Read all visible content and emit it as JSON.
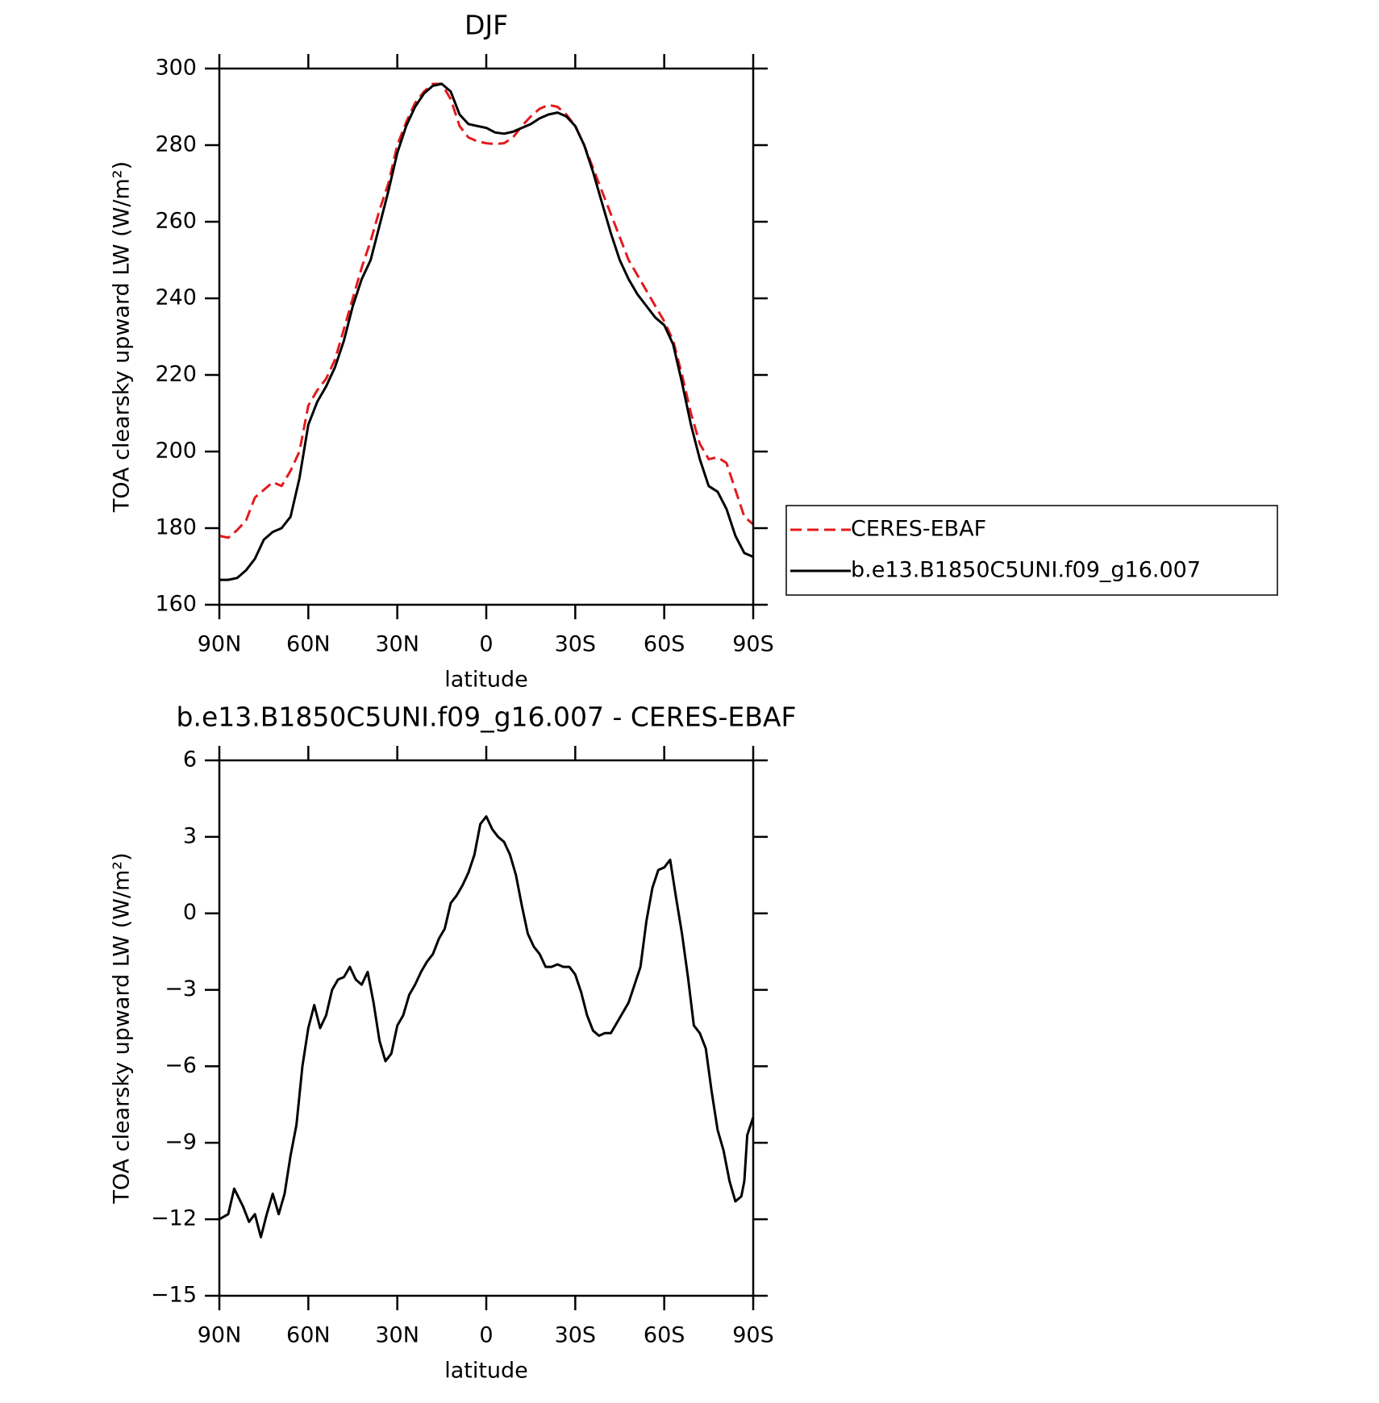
{
  "chart_data": [
    {
      "type": "line",
      "title": "DJF",
      "xlabel": "latitude",
      "ylabel": "TOA clearsky upward LW (W/m²)",
      "xlim": [
        90,
        -90
      ],
      "xticks": [
        {
          "value": 90,
          "label": "90N"
        },
        {
          "value": 60,
          "label": "60N"
        },
        {
          "value": 30,
          "label": "30N"
        },
        0,
        {
          "value": -30,
          "label": "30S"
        },
        {
          "value": -60,
          "label": "60S"
        },
        {
          "value": -90,
          "label": "90S"
        }
      ],
      "ylim": [
        160,
        300
      ],
      "yticks": [
        160,
        180,
        200,
        220,
        240,
        260,
        280,
        300
      ],
      "x": [
        90,
        87,
        84,
        81,
        78,
        75,
        72,
        69,
        66,
        63,
        60,
        57,
        54,
        51,
        48,
        45,
        42,
        39,
        36,
        33,
        30,
        27,
        24,
        21,
        18,
        15,
        12,
        9,
        6,
        3,
        0,
        -3,
        -6,
        -9,
        -12,
        -15,
        -18,
        -21,
        -24,
        -27,
        -30,
        -33,
        -36,
        -39,
        -42,
        -45,
        -48,
        -51,
        -54,
        -57,
        -60,
        -63,
        -66,
        -69,
        -72,
        -75,
        -78,
        -81,
        -84,
        -87,
        -90
      ],
      "series": [
        {
          "name": "CERES-EBAF",
          "color": "#e41a1c",
          "dash": true,
          "values": [
            178,
            177.5,
            179.5,
            182,
            188,
            190,
            192,
            191,
            195,
            200,
            212,
            216,
            219,
            224,
            232,
            240,
            248,
            255,
            263,
            270,
            280,
            286,
            291,
            294,
            296,
            296,
            292,
            285,
            282,
            281,
            280.5,
            280.3,
            280.5,
            282,
            285,
            287.5,
            289.5,
            290.5,
            290,
            288,
            285,
            280,
            274,
            268,
            262,
            256,
            250,
            246,
            242,
            238,
            234,
            229,
            220,
            210,
            202,
            198,
            198.5,
            197,
            190,
            183,
            181
          ]
        },
        {
          "name": "b.e13.B1850C5UNI.f09_g16.007",
          "color": "#000000",
          "dash": false,
          "values": [
            166.5,
            166.5,
            167,
            169,
            172,
            177,
            179,
            180,
            183,
            193,
            207,
            213,
            217,
            222,
            229,
            238,
            245,
            250,
            259,
            268,
            278,
            285,
            290,
            293.5,
            295.5,
            296,
            294,
            288,
            285.5,
            285,
            284.5,
            283.3,
            283,
            283.5,
            284.5,
            285.5,
            287,
            288,
            288.5,
            287.5,
            285,
            280,
            273,
            265,
            257,
            250,
            245,
            241,
            238,
            235,
            233,
            228,
            218,
            207,
            198,
            191,
            189.5,
            185,
            178,
            173.5,
            172.5
          ]
        }
      ]
    },
    {
      "type": "line",
      "title": "b.e13.B1850C5UNI.f09_g16.007 - CERES-EBAF",
      "xlabel": "latitude",
      "ylabel": "TOA clearsky upward LW (W/m²)",
      "xlim": [
        90,
        -90
      ],
      "xticks": [
        {
          "value": 90,
          "label": "90N"
        },
        {
          "value": 60,
          "label": "60N"
        },
        {
          "value": 30,
          "label": "30N"
        },
        0,
        {
          "value": -30,
          "label": "30S"
        },
        {
          "value": -60,
          "label": "60S"
        },
        {
          "value": -90,
          "label": "90S"
        }
      ],
      "ylim": [
        -15,
        6
      ],
      "yticks": [
        {
          "value": -15,
          "label": "−15"
        },
        {
          "value": -12,
          "label": "−12"
        },
        {
          "value": -9,
          "label": "−9"
        },
        {
          "value": -6,
          "label": "−6"
        },
        {
          "value": -3,
          "label": "−3"
        },
        0,
        3,
        6
      ],
      "x": [
        90,
        87,
        85,
        82,
        80,
        78,
        76,
        74,
        72,
        70,
        68,
        66,
        64,
        62,
        60,
        58,
        56,
        54,
        52,
        50,
        48,
        46,
        44,
        42,
        40,
        38,
        36,
        34,
        32,
        30,
        28,
        26,
        24,
        22,
        20,
        18,
        16,
        14,
        12,
        10,
        8,
        6,
        4,
        2,
        0,
        -2,
        -4,
        -6,
        -8,
        -10,
        -12,
        -14,
        -16,
        -18,
        -20,
        -22,
        -24,
        -26,
        -28,
        -30,
        -32,
        -34,
        -36,
        -38,
        -40,
        -42,
        -44,
        -46,
        -48,
        -50,
        -52,
        -54,
        -56,
        -58,
        -60,
        -62,
        -64,
        -66,
        -68,
        -70,
        -72,
        -74,
        -76,
        -78,
        -80,
        -82,
        -84,
        -86,
        -87,
        -88,
        -90
      ],
      "series": [
        {
          "color": "#000000",
          "dash": false,
          "values": [
            -12,
            -11.8,
            -10.8,
            -11.5,
            -12.1,
            -11.8,
            -12.7,
            -11.8,
            -11,
            -11.8,
            -11,
            -9.5,
            -8.3,
            -6,
            -4.5,
            -3.6,
            -4.5,
            -4,
            -3,
            -2.6,
            -2.5,
            -2.1,
            -2.6,
            -2.8,
            -2.3,
            -3.5,
            -5,
            -5.8,
            -5.5,
            -4.4,
            -4,
            -3.2,
            -2.8,
            -2.3,
            -1.9,
            -1.6,
            -1,
            -0.6,
            0.4,
            0.7,
            1.1,
            1.6,
            2.3,
            3.5,
            3.8,
            3.3,
            3,
            2.8,
            2.3,
            1.5,
            0.3,
            -0.8,
            -1.3,
            -1.6,
            -2.1,
            -2.1,
            -2,
            -2.1,
            -2.1,
            -2.4,
            -3.1,
            -4,
            -4.6,
            -4.8,
            -4.7,
            -4.7,
            -4.3,
            -3.9,
            -3.5,
            -2.8,
            -2.1,
            -0.3,
            1,
            1.7,
            1.8,
            2.1,
            0.6,
            -0.8,
            -2.5,
            -4.4,
            -4.7,
            -5.3,
            -7,
            -8.5,
            -9.3,
            -10.5,
            -11.3,
            -11.1,
            -10.5,
            -8.7,
            -8
          ]
        }
      ]
    }
  ]
}
